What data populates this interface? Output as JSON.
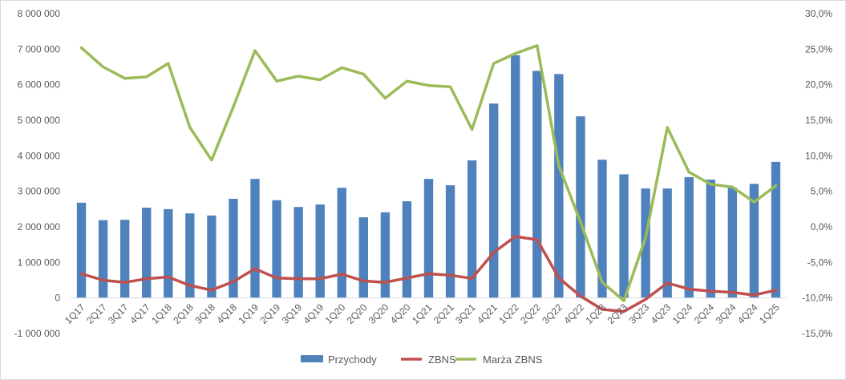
{
  "chart_data": {
    "type": "bar",
    "categories": [
      "1Q17",
      "2Q17",
      "3Q17",
      "4Q17",
      "1Q18",
      "2Q18",
      "3Q18",
      "4Q18",
      "1Q19",
      "2Q19",
      "3Q19",
      "4Q19",
      "1Q20",
      "2Q20",
      "3Q20",
      "4Q20",
      "1Q21",
      "2Q21",
      "3Q21",
      "4Q21",
      "1Q22",
      "2Q22",
      "3Q22",
      "4Q22",
      "1Q23",
      "2Q23",
      "3Q23",
      "4Q23",
      "1Q24",
      "2Q24",
      "3Q24",
      "4Q24",
      "1Q25"
    ],
    "series": [
      {
        "name": "Przychody",
        "type": "bar",
        "axis": "left",
        "color": "#4f81bd",
        "values": [
          2680000,
          2190000,
          2200000,
          2540000,
          2500000,
          2380000,
          2320000,
          2790000,
          3350000,
          2750000,
          2560000,
          2630000,
          3100000,
          2270000,
          2410000,
          2720000,
          3350000,
          3170000,
          3870000,
          5470000,
          6830000,
          6390000,
          6300000,
          5110000,
          3890000,
          3480000,
          3080000,
          3080000,
          3400000,
          3330000,
          3100000,
          3210000,
          3830000
        ]
      },
      {
        "name": "ZBNS",
        "type": "line",
        "axis": "left",
        "color": "#c0504d",
        "values": [
          680000,
          500000,
          440000,
          540000,
          590000,
          350000,
          220000,
          460000,
          820000,
          560000,
          540000,
          540000,
          670000,
          480000,
          440000,
          560000,
          680000,
          640000,
          550000,
          1280000,
          1730000,
          1640000,
          560000,
          50000,
          -320000,
          -380000,
          -40000,
          420000,
          250000,
          190000,
          160000,
          80000,
          220000
        ]
      },
      {
        "name": "Marża ZBNS",
        "type": "line",
        "axis": "right",
        "color": "#9bbb59",
        "values": [
          25.2,
          22.5,
          20.9,
          21.1,
          23.0,
          14.0,
          9.4,
          16.9,
          24.8,
          20.5,
          21.2,
          20.7,
          22.4,
          21.5,
          18.1,
          20.5,
          19.9,
          19.7,
          13.7,
          23.0,
          24.4,
          25.5,
          8.6,
          0.7,
          -7.8,
          -10.4,
          -1.5,
          14.0,
          7.7,
          6.0,
          5.6,
          3.5,
          5.8
        ]
      }
    ],
    "y_left": {
      "ylim": [
        -1000000,
        8000000
      ],
      "tick_labels": [
        "-1 000 000",
        "0",
        "1 000 000",
        "2 000 000",
        "3 000 000",
        "4 000 000",
        "5 000 000",
        "6 000 000",
        "7 000 000",
        "8 000 000"
      ]
    },
    "y_right": {
      "ylim": [
        -15,
        30
      ],
      "tick_labels": [
        "-15,0%",
        "-10,0%",
        "-5,0%",
        "0,0%",
        "5,0%",
        "10,0%",
        "15,0%",
        "20,0%",
        "25,0%",
        "30,0%"
      ]
    },
    "grid": false,
    "legend_position": "bottom"
  }
}
